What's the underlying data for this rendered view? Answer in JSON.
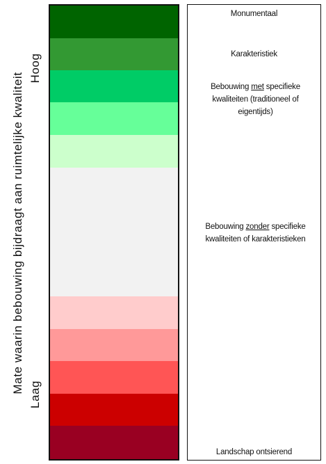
{
  "axis": {
    "title": "Mate waarin bebouwing bijdraagt aan ruimtelijke kwaliteit",
    "high_label": "Hoog",
    "low_label": "Laag"
  },
  "bands": [
    {
      "color": "#006400",
      "share": 47
    },
    {
      "color": "#339933",
      "share": 47
    },
    {
      "color": "#00CC66",
      "share": 46
    },
    {
      "color": "#66FF99",
      "share": 47
    },
    {
      "color": "#CCFFCC",
      "share": 47
    },
    {
      "color": "#F2F2F2",
      "share": 187
    },
    {
      "color": "#FFCCCC",
      "share": 47
    },
    {
      "color": "#FF9999",
      "share": 46
    },
    {
      "color": "#FF5555",
      "share": 47
    },
    {
      "color": "#CC0000",
      "share": 47
    },
    {
      "color": "#990022",
      "share": 48
    }
  ],
  "legend": {
    "monumental": "Monumentaal",
    "characteristic": "Karakteristiek",
    "with_quality": {
      "before": "Bebouwing ",
      "emphasis": "met",
      "after": " specifieke kwaliteiten (traditioneel of eigentijds)"
    },
    "without_quality": {
      "before": "Bebouwing ",
      "emphasis": "zonder",
      "after": " specifieke kwaliteiten of karakteristieken"
    },
    "landscape_disturbing": "Landschap ontsierend"
  }
}
